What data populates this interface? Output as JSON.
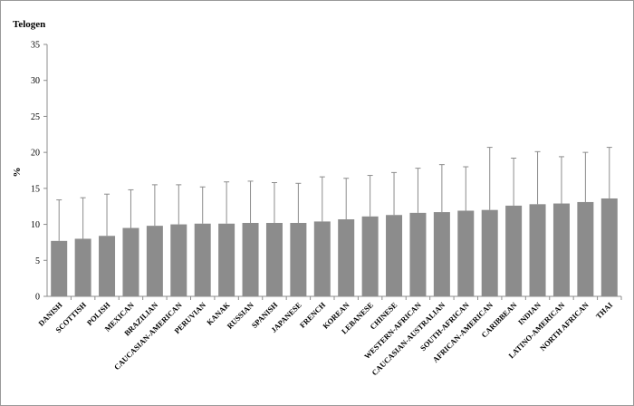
{
  "chart_data": {
    "type": "bar",
    "title": "Telogen",
    "xlabel": "",
    "ylabel": "%",
    "ylim": [
      0,
      35
    ],
    "yticks": [
      0,
      5,
      10,
      15,
      20,
      25,
      30,
      35
    ],
    "grid": false,
    "legend": "none",
    "categories": [
      "DANISH",
      "SCOTTISH",
      "POLISH",
      "MEXICAN",
      "BRAZILIAN",
      "CAUCASIAN-AMERICAN",
      "PERUVIAN",
      "KANAK",
      "RUSSIAN",
      "SPANISH",
      "JAPANESE",
      "FRENCH",
      "KOREAN",
      "LEBANESE",
      "CHINESE",
      "WESTERN-AFRICAN",
      "CAUCASIAN-AUSTRALIAN",
      "SOUTH-AFRICAN",
      "AFRICAN-AMERICAN",
      "CARIBBEAN",
      "INDIAN",
      "LATINO-AMERICAN",
      "NORTH AFRICAN",
      "THAI"
    ],
    "values": [
      7.7,
      8.0,
      8.4,
      9.5,
      9.8,
      10.0,
      10.1,
      10.1,
      10.2,
      10.2,
      10.2,
      10.4,
      10.7,
      11.1,
      11.3,
      11.6,
      11.7,
      11.9,
      12.0,
      12.6,
      12.8,
      12.9,
      13.1,
      13.6
    ],
    "error_upper": [
      13.4,
      13.7,
      14.2,
      14.8,
      15.5,
      15.5,
      15.2,
      15.9,
      16.0,
      15.8,
      15.7,
      16.6,
      16.4,
      16.8,
      17.2,
      17.8,
      18.3,
      18.0,
      20.7,
      19.2,
      20.1,
      19.4,
      20.0,
      20.7
    ],
    "colors": {
      "bar": "#8c8c8c",
      "error": "#8c8c8c",
      "axis": "#8c8c8c"
    }
  }
}
